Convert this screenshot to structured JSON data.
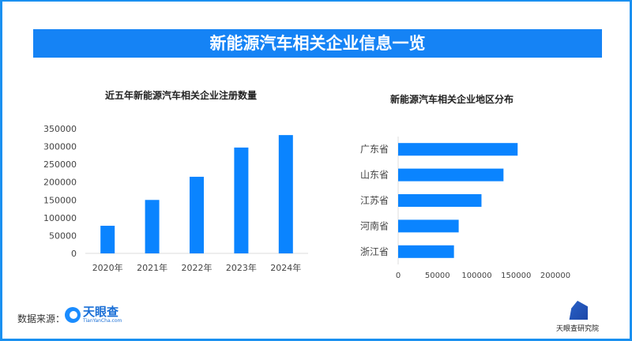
{
  "banner_title": "新能源汽车相关企业信息一览",
  "chart_data": [
    {
      "type": "bar",
      "title": "近五年新能源汽车相关企业注册数量",
      "categories": [
        "2020年",
        "2021年",
        "2022年",
        "2023年",
        "2024年"
      ],
      "values": [
        77500,
        150000,
        215000,
        297000,
        332000
      ],
      "ylim": [
        0,
        350000
      ],
      "yticks": [
        "0",
        "50000",
        "100000",
        "150000",
        "200000",
        "250000",
        "300000",
        "350000"
      ],
      "color": "#0a84ff",
      "grid": false
    },
    {
      "type": "bar",
      "orientation": "horizontal",
      "title": "新能源汽车相关企业地区分布",
      "categories": [
        "广东省",
        "山东省",
        "江苏省",
        "河南省",
        "浙江省"
      ],
      "values": [
        152000,
        134000,
        106000,
        77000,
        71000
      ],
      "xlim": [
        0,
        200000
      ],
      "xticks": [
        "0",
        "50000",
        "100000",
        "150000",
        "200000"
      ],
      "color": "#0a84ff",
      "grid": false
    }
  ],
  "footer": {
    "source_label": "数据来源：",
    "source_logo": "天眼查",
    "source_logo_sub": "TianYanCha.com",
    "institute": "天眼查研究院"
  }
}
